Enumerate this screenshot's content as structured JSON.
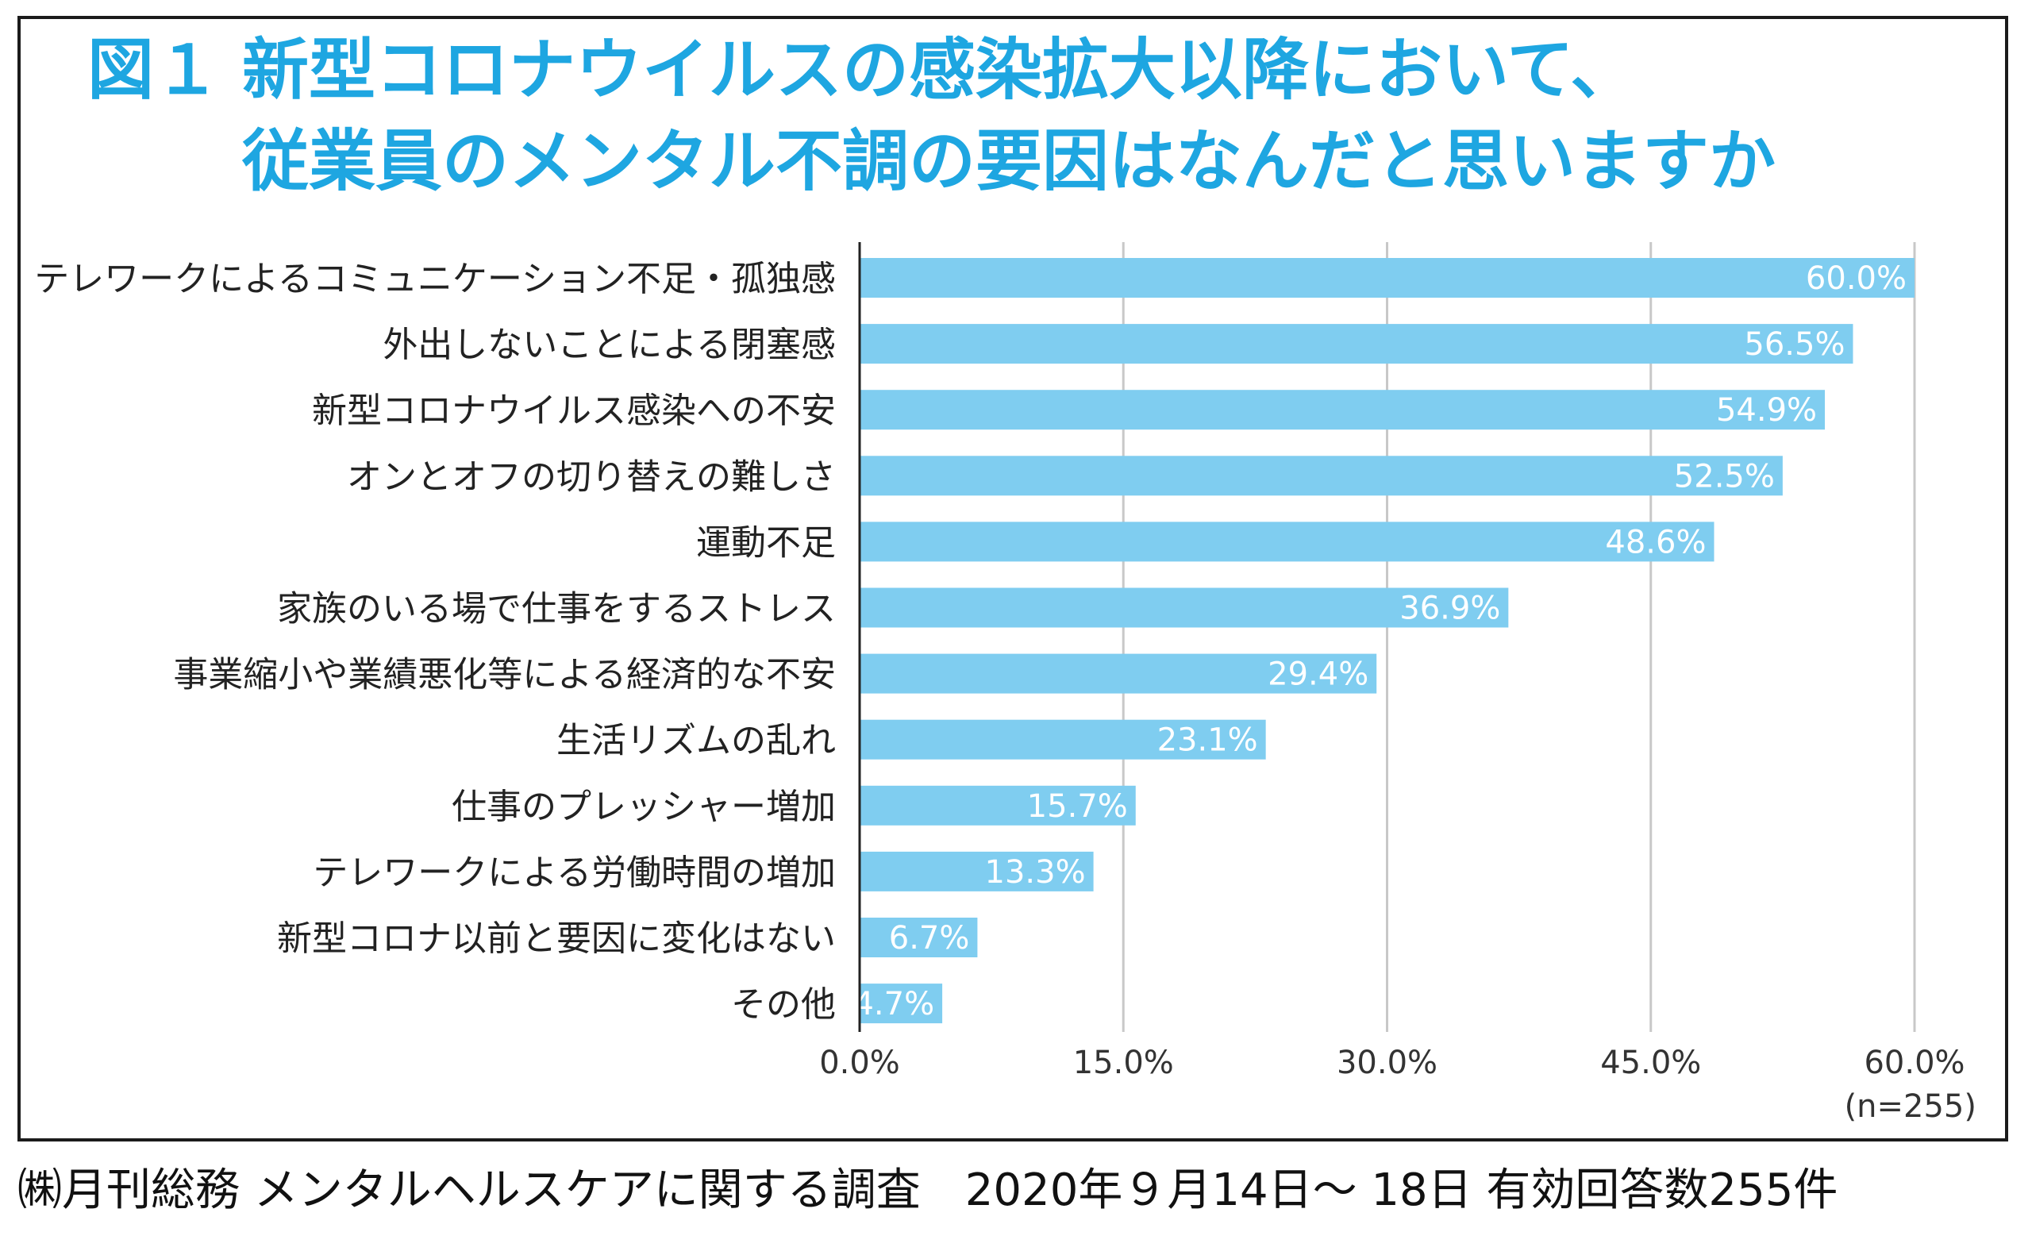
{
  "title": {
    "prefix": "図１",
    "line1": "新型コロナウイルスの感染拡大以降において、",
    "line2": "従業員のメンタル不調の要因はなんだと思いますか"
  },
  "footer": "㈱月刊総務 メンタルヘルスケアに関する調査　2020年９月14日～ 18日 有効回答数255件",
  "colors": {
    "bar": "#7fcdf0",
    "title": "#1ea6e1",
    "grid": "#c8c8c8",
    "axis": "#222222"
  },
  "chart_data": {
    "type": "bar",
    "orientation": "horizontal",
    "categories": [
      "テレワークによるコミュニケーション不足・孤独感",
      "外出しないことによる閉塞感",
      "新型コロナウイルス感染への不安",
      "オンとオフの切り替えの難しさ",
      "運動不足",
      "家族のいる場で仕事をするストレス",
      "事業縮小や業績悪化等による経済的な不安",
      "生活リズムの乱れ",
      "仕事のプレッシャー増加",
      "テレワークによる労働時間の増加",
      "新型コロナ以前と要因に変化はない",
      "その他"
    ],
    "values": [
      60.0,
      56.5,
      54.9,
      52.5,
      48.6,
      36.9,
      29.4,
      23.1,
      15.7,
      13.3,
      6.7,
      4.7
    ],
    "value_labels": [
      "60.0%",
      "56.5%",
      "54.9%",
      "52.5%",
      "48.6%",
      "36.9%",
      "29.4%",
      "23.1%",
      "15.7%",
      "13.3%",
      "6.7%",
      "4.7%"
    ],
    "xlim": [
      0,
      60
    ],
    "xticks": [
      0,
      15,
      30,
      45,
      60
    ],
    "xtick_labels": [
      "0.0%",
      "15.0%",
      "30.0%",
      "45.0%",
      "60.0%"
    ],
    "grid": true,
    "note": "(n=255)"
  }
}
